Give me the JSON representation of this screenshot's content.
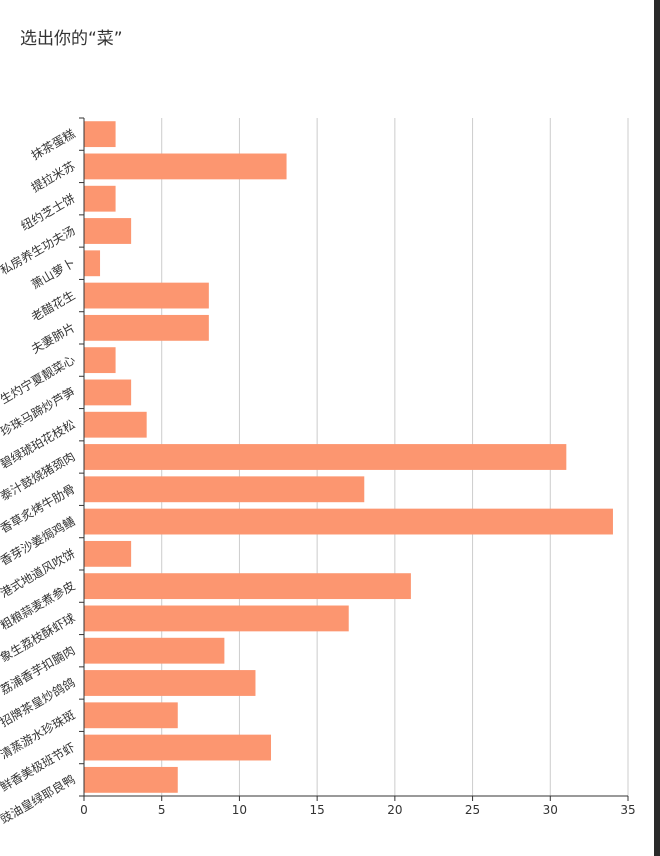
{
  "title": "选出你的“菜”",
  "colors": {
    "bar": "#FC9670",
    "grid": "#cccccc",
    "axis": "#333333",
    "edge": "#2a2a2a"
  },
  "chart_data": {
    "type": "bar",
    "orientation": "horizontal",
    "title": "选出你的“菜”",
    "categories": [
      "抹茶蛋糕",
      "提拉米苏",
      "纽约芝士饼",
      "私房养生功夫汤",
      "萧山萝卜",
      "老醋花生",
      "夫妻肺片",
      "生灼宁夏靓菜心",
      "珍珠马蹄炒芦笋",
      "碧绿琥珀花枝松",
      "泰汁鼓烧猪颈肉",
      "香草炙烤牛肋骨",
      "香芽沙姜焗鸡鳝",
      "港式地道风吹饼",
      "粗粮蒜麦煮参皮",
      "象生荔枝酥虾球",
      "荔浦香芋扣腩肉",
      "招牌茶皇炒鸽鸽",
      "清蒸游水珍珠斑",
      "鲜香美极班节虾",
      "豉油皇绿耶良鸭"
    ],
    "values": [
      2,
      13,
      2,
      3,
      1,
      8,
      8,
      2,
      3,
      4,
      31,
      18,
      34,
      3,
      21,
      17,
      9,
      11,
      6,
      12,
      6
    ],
    "xlim": [
      0,
      35
    ],
    "xticks": [
      0,
      5,
      10,
      15,
      20,
      25,
      30,
      35
    ],
    "xlabel": "",
    "ylabel": "",
    "grid": true,
    "legend": "none"
  }
}
